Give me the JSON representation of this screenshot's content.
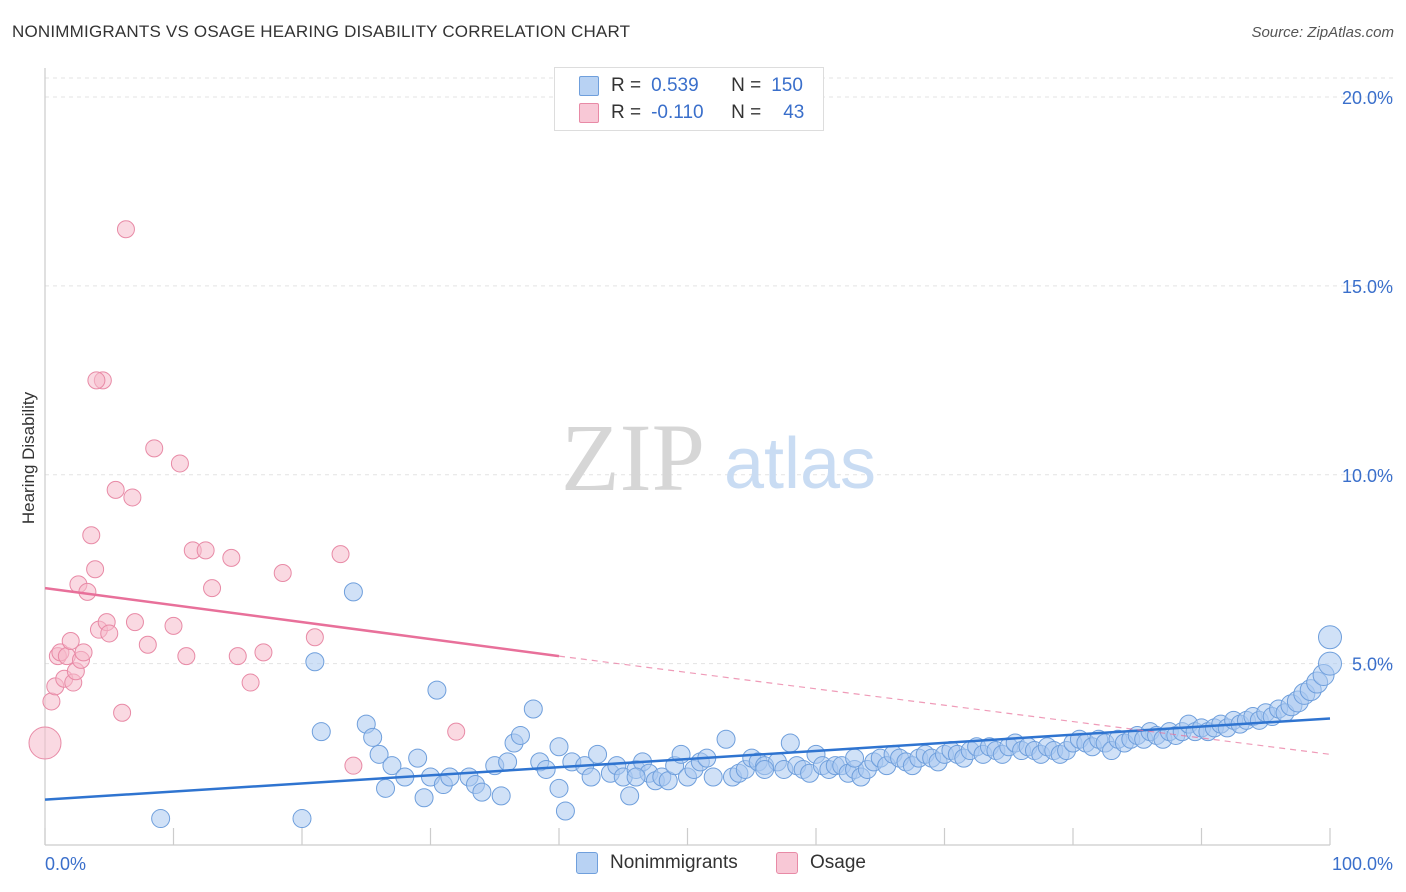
{
  "header": {
    "title": "NONIMMIGRANTS VS OSAGE HEARING DISABILITY CORRELATION CHART",
    "source": "Source: ZipAtlas.com"
  },
  "watermark": {
    "zip": "ZIP",
    "atlas": "atlas"
  },
  "legend": {
    "rows": [
      {
        "r_label": "R =",
        "r_value": "0.539",
        "n_label": "N =",
        "n_value": "150"
      },
      {
        "r_label": "R =",
        "r_value": "-0.110",
        "n_label": "N =",
        "n_value": "43"
      }
    ]
  },
  "bottom_legend": {
    "series1": "Nonimmigrants",
    "series2": "Osage"
  },
  "colors": {
    "blue_fill": "#a9c8f0",
    "blue_stroke": "#6f9fdc",
    "blue_line": "#2f74d0",
    "pink_fill": "#f6b9cb",
    "pink_stroke": "#e88aa6",
    "pink_line": "#e8709a",
    "tick_label": "#3a6fcb"
  },
  "chart_data": {
    "type": "scatter",
    "title": "NONIMMIGRANTS VS OSAGE HEARING DISABILITY CORRELATION CHART",
    "xlabel": "",
    "ylabel": "Hearing Disability",
    "xlim": [
      0,
      100
    ],
    "ylim": [
      0,
      20.5
    ],
    "x_tick_labels": [
      "0.0%",
      "100.0%"
    ],
    "y_ticks": [
      5,
      10,
      15,
      20
    ],
    "y_tick_labels": [
      "5.0%",
      "10.0%",
      "15.0%",
      "20.0%"
    ],
    "grid": true,
    "legend_position": "top-center",
    "series": [
      {
        "name": "Nonimmigrants",
        "r": 0.539,
        "n": 150,
        "trend": {
          "x": [
            0,
            100
          ],
          "y": [
            1.4,
            3.55
          ]
        },
        "points": [
          [
            9,
            0.9
          ],
          [
            20,
            0.9
          ],
          [
            21,
            5.05
          ],
          [
            21.5,
            3.2
          ],
          [
            24,
            6.9
          ],
          [
            25,
            3.4
          ],
          [
            25.5,
            3.05
          ],
          [
            26,
            2.6
          ],
          [
            26.5,
            1.7
          ],
          [
            27,
            2.3
          ],
          [
            28,
            2.0
          ],
          [
            29,
            2.5
          ],
          [
            29.5,
            1.45
          ],
          [
            30,
            2.0
          ],
          [
            30.5,
            4.3
          ],
          [
            31,
            1.8
          ],
          [
            31.5,
            2.0
          ],
          [
            33,
            2.0
          ],
          [
            33.5,
            1.8
          ],
          [
            34,
            1.6
          ],
          [
            35,
            2.3
          ],
          [
            35.5,
            1.5
          ],
          [
            36,
            2.4
          ],
          [
            36.5,
            2.9
          ],
          [
            37,
            3.1
          ],
          [
            38,
            3.8
          ],
          [
            38.5,
            2.4
          ],
          [
            39,
            2.2
          ],
          [
            40,
            1.7
          ],
          [
            40,
            2.8
          ],
          [
            40.5,
            1.1
          ],
          [
            41,
            2.4
          ],
          [
            42,
            2.3
          ],
          [
            42.5,
            2.0
          ],
          [
            43,
            2.6
          ],
          [
            44,
            2.1
          ],
          [
            44.5,
            2.3
          ],
          [
            45,
            2.0
          ],
          [
            45.5,
            1.5
          ],
          [
            46,
            2.2
          ],
          [
            46.5,
            2.4
          ],
          [
            47,
            2.1
          ],
          [
            47.5,
            1.9
          ],
          [
            48,
            2.0
          ],
          [
            48.5,
            1.9
          ],
          [
            49,
            2.3
          ],
          [
            49.5,
            2.6
          ],
          [
            50,
            2.0
          ],
          [
            50.5,
            2.2
          ],
          [
            51,
            2.4
          ],
          [
            51.5,
            2.5
          ],
          [
            52,
            2.0
          ],
          [
            53,
            3.0
          ],
          [
            53.5,
            2.0
          ],
          [
            54,
            2.1
          ],
          [
            54.5,
            2.2
          ],
          [
            55,
            2.5
          ],
          [
            55.5,
            2.4
          ],
          [
            56,
            2.3
          ],
          [
            57,
            2.4
          ],
          [
            57.5,
            2.2
          ],
          [
            58,
            2.9
          ],
          [
            58.5,
            2.3
          ],
          [
            59,
            2.2
          ],
          [
            59.5,
            2.1
          ],
          [
            60,
            2.6
          ],
          [
            60.5,
            2.3
          ],
          [
            61,
            2.2
          ],
          [
            61.5,
            2.3
          ],
          [
            62,
            2.3
          ],
          [
            62.5,
            2.1
          ],
          [
            63,
            2.2
          ],
          [
            63.5,
            2.0
          ],
          [
            64,
            2.2
          ],
          [
            64.5,
            2.4
          ],
          [
            65,
            2.5
          ],
          [
            65.5,
            2.3
          ],
          [
            66,
            2.6
          ],
          [
            66.5,
            2.5
          ],
          [
            67,
            2.4
          ],
          [
            67.5,
            2.3
          ],
          [
            68,
            2.5
          ],
          [
            68.5,
            2.6
          ],
          [
            69,
            2.5
          ],
          [
            69.5,
            2.4
          ],
          [
            70,
            2.6
          ],
          [
            70.5,
            2.7
          ],
          [
            71,
            2.6
          ],
          [
            71.5,
            2.5
          ],
          [
            72,
            2.7
          ],
          [
            72.5,
            2.8
          ],
          [
            73,
            2.6
          ],
          [
            73.5,
            2.8
          ],
          [
            74,
            2.7
          ],
          [
            74.5,
            2.6
          ],
          [
            75,
            2.8
          ],
          [
            75.5,
            2.9
          ],
          [
            76,
            2.7
          ],
          [
            76.5,
            2.8
          ],
          [
            77,
            2.7
          ],
          [
            77.5,
            2.6
          ],
          [
            78,
            2.8
          ],
          [
            78.5,
            2.7
          ],
          [
            79,
            2.6
          ],
          [
            79.5,
            2.7
          ],
          [
            80,
            2.9
          ],
          [
            80.5,
            3.0
          ],
          [
            81,
            2.9
          ],
          [
            81.5,
            2.8
          ],
          [
            82,
            3.0
          ],
          [
            82.5,
            2.9
          ],
          [
            83,
            2.7
          ],
          [
            83.5,
            3.0
          ],
          [
            84,
            2.9
          ],
          [
            84.5,
            3.0
          ],
          [
            85,
            3.1
          ],
          [
            85.5,
            3.0
          ],
          [
            86,
            3.2
          ],
          [
            86.5,
            3.1
          ],
          [
            87,
            3.0
          ],
          [
            87.5,
            3.2
          ],
          [
            88,
            3.1
          ],
          [
            88.5,
            3.2
          ],
          [
            89,
            3.4
          ],
          [
            89.5,
            3.2
          ],
          [
            90,
            3.3
          ],
          [
            90.5,
            3.2
          ],
          [
            91,
            3.3
          ],
          [
            91.5,
            3.4
          ],
          [
            92,
            3.3
          ],
          [
            92.5,
            3.5
          ],
          [
            93,
            3.4
          ],
          [
            93.5,
            3.5
          ],
          [
            94,
            3.6
          ],
          [
            94.5,
            3.5
          ],
          [
            95,
            3.7
          ],
          [
            95.5,
            3.6
          ],
          [
            96,
            3.8
          ],
          [
            96.5,
            3.7
          ],
          [
            97,
            3.9
          ],
          [
            97.5,
            4.0
          ],
          [
            98,
            4.2
          ],
          [
            98.5,
            4.3
          ],
          [
            99,
            4.5
          ],
          [
            99.5,
            4.7
          ],
          [
            100,
            5.0
          ],
          [
            101,
            5.7
          ],
          [
            46,
            2.0
          ],
          [
            56,
            2.2
          ],
          [
            63,
            2.5
          ]
        ]
      },
      {
        "name": "Osage",
        "r": -0.11,
        "n": 43,
        "trend": {
          "x": [
            0,
            40
          ],
          "y": [
            7.0,
            5.2
          ]
        },
        "trend_dashed": {
          "x": [
            40,
            100
          ],
          "y": [
            5.2,
            2.6
          ]
        },
        "points": [
          [
            0,
            2.9
          ],
          [
            0.5,
            4.0
          ],
          [
            0.8,
            4.4
          ],
          [
            1,
            5.2
          ],
          [
            1.2,
            5.3
          ],
          [
            1.5,
            4.6
          ],
          [
            1.7,
            5.2
          ],
          [
            2,
            5.6
          ],
          [
            2.2,
            4.5
          ],
          [
            2.4,
            4.8
          ],
          [
            2.6,
            7.1
          ],
          [
            2.8,
            5.1
          ],
          [
            3,
            5.3
          ],
          [
            3.3,
            6.9
          ],
          [
            3.6,
            8.4
          ],
          [
            3.9,
            7.5
          ],
          [
            4.2,
            5.9
          ],
          [
            4.5,
            12.5
          ],
          [
            4.8,
            6.1
          ],
          [
            5,
            5.8
          ],
          [
            5.5,
            9.6
          ],
          [
            6,
            3.7
          ],
          [
            6.3,
            16.5
          ],
          [
            6.8,
            9.4
          ],
          [
            7,
            6.1
          ],
          [
            8,
            5.5
          ],
          [
            8.5,
            10.7
          ],
          [
            10,
            6.0
          ],
          [
            10.5,
            10.3
          ],
          [
            11,
            5.2
          ],
          [
            11.5,
            8.0
          ],
          [
            12.5,
            8.0
          ],
          [
            13,
            7.0
          ],
          [
            14.5,
            7.8
          ],
          [
            15,
            5.2
          ],
          [
            16,
            4.5
          ],
          [
            17,
            5.3
          ],
          [
            18.5,
            7.4
          ],
          [
            21,
            5.7
          ],
          [
            23,
            7.9
          ],
          [
            24,
            2.3
          ],
          [
            32,
            3.2
          ],
          [
            4,
            12.5
          ]
        ]
      }
    ]
  }
}
